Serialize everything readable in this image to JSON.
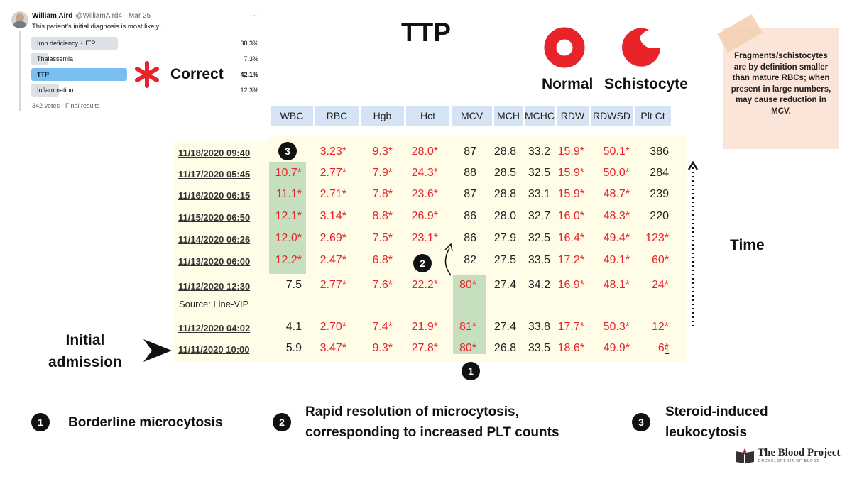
{
  "poll": {
    "author_name": "William Aird",
    "author_handle": "@WilliamAird4 · Mar 25",
    "more": "···",
    "question": "This patient's initial diagnosis is most likely:",
    "options": [
      {
        "label": "Iron deficiency + ITP",
        "percent": "38.3%",
        "fraction": 0.383
      },
      {
        "label": "Thalassemia",
        "percent": "7.3%",
        "fraction": 0.073
      },
      {
        "label": "TTP",
        "percent": "42.1%",
        "fraction": 0.421
      },
      {
        "label": "Inflammation",
        "percent": "12.3%",
        "fraction": 0.123
      }
    ],
    "votes": "342 votes · Final results"
  },
  "correct_label": "Correct",
  "title": "TTP",
  "rbc_labels": {
    "normal": "Normal",
    "schistocyte": "Schistocyte"
  },
  "note": "Fragments/schistocytes are by definition smaller than mature RBCs; when present in large numbers, may cause reduction in MCV.",
  "colors": {
    "accent_red": "#e8232a",
    "header_blue": "#d4e4f4",
    "highlight_green": "#c6e0bf",
    "table_bg": "#fffde8",
    "note_bg": "#fbe4d8",
    "poll_winner": "#79bef0"
  },
  "lab_table": {
    "columns": [
      "WBC",
      "RBC",
      "Hgb",
      "Hct",
      "MCV",
      "MCH",
      "MCHC",
      "RDW",
      "RDWSD",
      "Plt Ct"
    ],
    "rows": [
      {
        "date": "11/18/2020 09:40",
        "values": [
          "",
          "3.23*",
          "9.3*",
          "28.0*",
          "87",
          "28.8",
          "33.2",
          "15.9*",
          "50.1*",
          "386"
        ]
      },
      {
        "date": "11/17/2020 05:45",
        "values": [
          "10.7*",
          "2.77*",
          "7.9*",
          "24.3*",
          "88",
          "28.5",
          "32.5",
          "15.9*",
          "50.0*",
          "284"
        ]
      },
      {
        "date": "11/16/2020 06:15",
        "values": [
          "11.1*",
          "2.71*",
          "7.8*",
          "23.6*",
          "87",
          "28.8",
          "33.1",
          "15.9*",
          "48.7*",
          "239"
        ]
      },
      {
        "date": "11/15/2020 06:50",
        "values": [
          "12.1*",
          "3.14*",
          "8.8*",
          "26.9*",
          "86",
          "28.0",
          "32.7",
          "16.0*",
          "48.3*",
          "220"
        ]
      },
      {
        "date": "11/14/2020 06:26",
        "values": [
          "12.0*",
          "2.69*",
          "7.5*",
          "23.1*",
          "86",
          "27.9",
          "32.5",
          "16.4*",
          "49.4*",
          "123*"
        ]
      },
      {
        "date": "11/13/2020 06:00",
        "values": [
          "12.2*",
          "2.47*",
          "6.8*",
          "",
          "82",
          "27.5",
          "33.5",
          "17.2*",
          "49.1*",
          "60*"
        ]
      },
      {
        "date": "11/12/2020 12:30",
        "values": [
          "7.5",
          "2.77*",
          "7.6*",
          "22.2*",
          "80*",
          "27.4",
          "34.2",
          "16.9*",
          "48.1*",
          "24*"
        ]
      },
      {
        "date": "11/12/2020 04:02",
        "values": [
          "4.1",
          "2.70*",
          "7.4*",
          "21.9*",
          "81*",
          "27.4",
          "33.8",
          "17.7*",
          "50.3*",
          "12*"
        ]
      },
      {
        "date": "11/11/2020 10:00",
        "values": [
          "5.9",
          "3.47*",
          "9.3*",
          "27.8*",
          "80*",
          "26.8",
          "33.5",
          "18.6*",
          "49.9*",
          "6*"
        ]
      }
    ],
    "source_note": "Source: Line-VIP",
    "footnote_mark": "1"
  },
  "markers": {
    "one": "1",
    "two": "2",
    "three": "3"
  },
  "time_label": "Time",
  "initial_admission": {
    "line1": "Initial",
    "line2": "admission"
  },
  "legend": [
    {
      "num": "1",
      "text": "Borderline microcytosis"
    },
    {
      "num": "2",
      "line1": "Rapid resolution of microcytosis,",
      "line2": "corresponding to increased PLT counts"
    },
    {
      "num": "3",
      "line1": "Steroid-induced",
      "line2": "leukocytosis"
    }
  ],
  "logo": {
    "title": "The Blood Project",
    "subtitle": "ENCYCLOPEDIA OF BLOOD"
  }
}
